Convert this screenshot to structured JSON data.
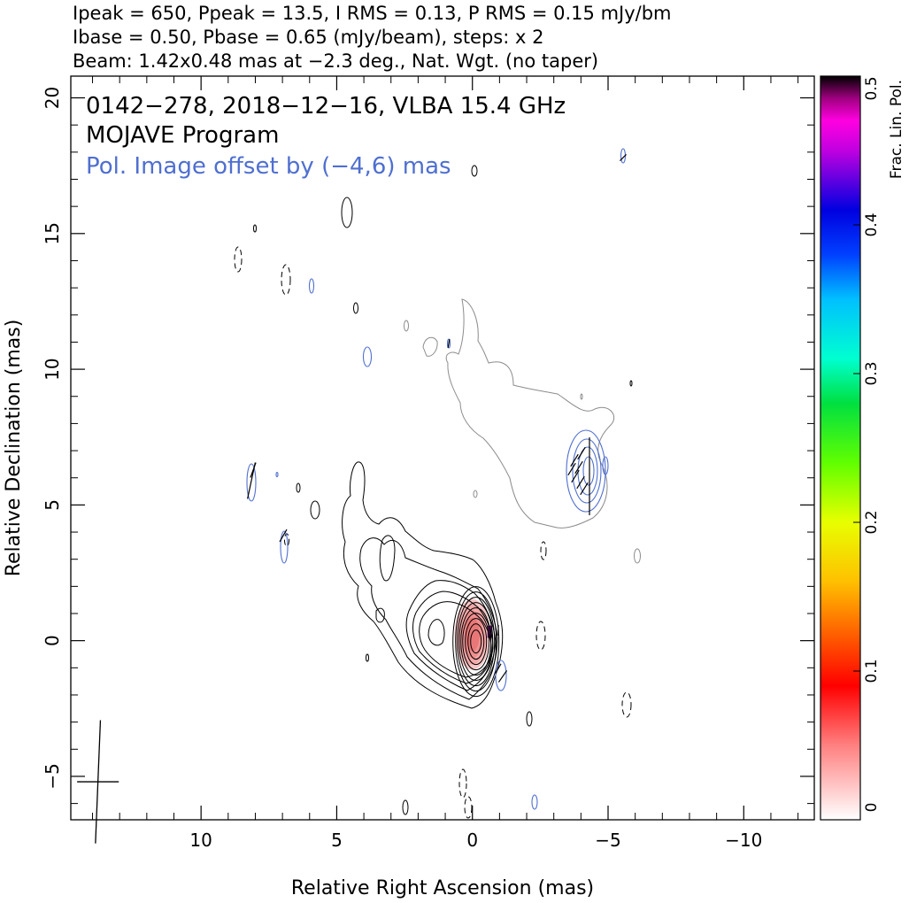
{
  "header": {
    "line1": "Ipeak = 650, Ppeak = 13.5, I RMS = 0.13, P RMS = 0.15 mJy/bm",
    "line2": "Ibase = 0.50, Pbase = 0.65 (mJy/beam), steps: x 2",
    "line3": "Beam: 1.42x0.48 mas at −2.3 deg., Nat. Wgt. (no taper)"
  },
  "annotations": {
    "source": "0142−278, 2018−12−16, VLBA 15.4 GHz",
    "program": "MOJAVE Program",
    "offset_note": "Pol. Image offset by (−4,6) mas",
    "offset_color": "#4f6fd0"
  },
  "chart_data": {
    "type": "contour",
    "xlabel": "Relative Right Ascension (mas)",
    "ylabel": "Relative Declination (mas)",
    "xlim": [
      14.8,
      -12.6
    ],
    "ylim": [
      -6.6,
      20.8
    ],
    "x_ticks": [
      10,
      5,
      0,
      -5,
      -10
    ],
    "x_tick_labels": [
      "10",
      "5",
      "0",
      "−5",
      "−10"
    ],
    "y_ticks": [
      -5,
      0,
      5,
      10,
      15,
      20
    ],
    "y_tick_labels": [
      "−5",
      "0",
      "5",
      "10",
      "15",
      "20"
    ],
    "stokes_i_core": {
      "x": 0.0,
      "y": 0.1,
      "peak_mJy_per_beam": 650
    },
    "stokes_i_levels_mJy_per_beam": [
      0.5,
      1,
      2,
      4,
      8,
      16,
      32,
      64,
      128,
      256,
      512
    ],
    "stokes_i_contour_color": "#000000",
    "pol_intensity_contour_color": "#4f6fd0",
    "pol_total_intensity_contour_color": "#8c8c8c",
    "colorbar": {
      "label": "Frac. Lin. Pol.",
      "range": [
        0,
        0.5
      ],
      "ticks": [
        0,
        0.1,
        0.2,
        0.3,
        0.4,
        0.5
      ],
      "tick_labels": [
        "0",
        "0.1",
        "0.2",
        "0.3",
        "0.4",
        "0.5"
      ],
      "colormap_stops": [
        [
          0.0,
          "#ffffff"
        ],
        [
          0.1,
          "#ff8080"
        ],
        [
          0.18,
          "#ff0000"
        ],
        [
          0.25,
          "#ff6000"
        ],
        [
          0.32,
          "#ffc000"
        ],
        [
          0.4,
          "#e8ff00"
        ],
        [
          0.48,
          "#60ff00"
        ],
        [
          0.56,
          "#00e040"
        ],
        [
          0.62,
          "#00ffd0"
        ],
        [
          0.7,
          "#00c0ff"
        ],
        [
          0.76,
          "#0040ff"
        ],
        [
          0.82,
          "#0000e0"
        ],
        [
          0.86,
          "#6000e0"
        ],
        [
          0.9,
          "#c000e0"
        ],
        [
          0.94,
          "#ff00e0"
        ],
        [
          0.97,
          "#a00080"
        ],
        [
          1.0,
          "#000000"
        ]
      ]
    },
    "restoring_beam": {
      "major_mas": 1.42,
      "minor_mas": 0.48,
      "pa_deg": -2.3,
      "center": [
        13.8,
        -5.2
      ]
    }
  }
}
